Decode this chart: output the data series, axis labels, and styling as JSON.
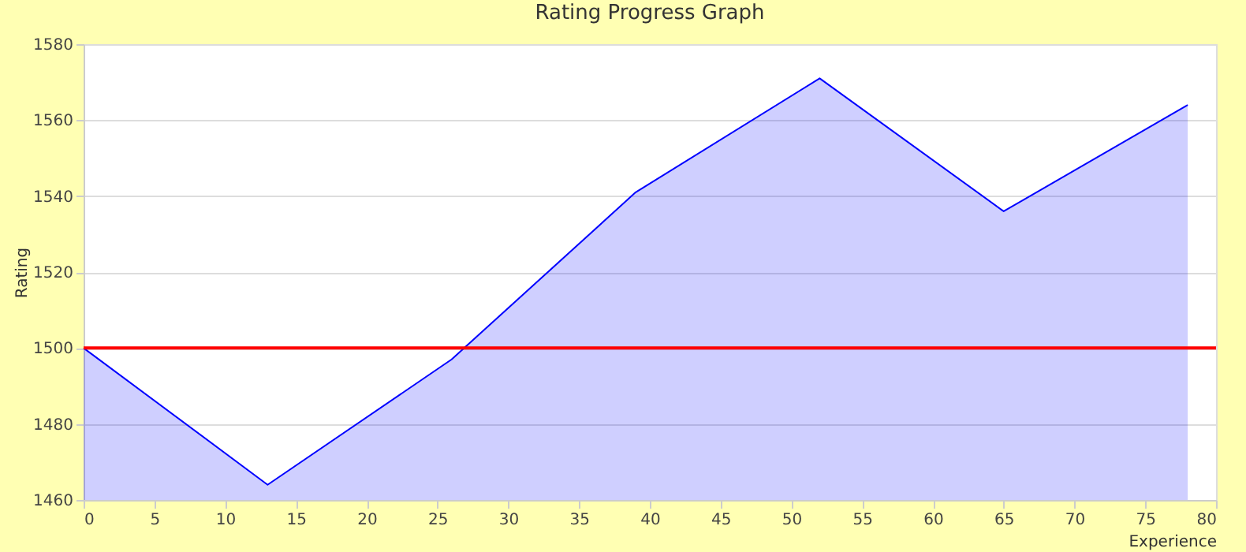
{
  "chart_data": {
    "type": "area",
    "title": "Rating Progress Graph",
    "xlabel": "Experience",
    "ylabel": "Rating",
    "x": [
      0,
      13,
      26,
      39,
      52,
      65,
      78
    ],
    "series": [
      {
        "color": "#0000ff",
        "values": [
          1500,
          1464,
          1497,
          1541,
          1571,
          1536,
          1564
        ]
      }
    ],
    "xlim": [
      0,
      80
    ],
    "xticks": [
      0,
      5,
      10,
      15,
      20,
      25,
      30,
      35,
      40,
      45,
      50,
      55,
      60,
      65,
      70,
      75,
      80
    ],
    "ylim": [
      1460,
      1580
    ],
    "yticks": [
      1460,
      1480,
      1500,
      1520,
      1540,
      1560,
      1580
    ],
    "ref_lines": [
      {
        "axis": "y",
        "value": 1500,
        "color": "#ff0000"
      }
    ],
    "grid": "y"
  }
}
